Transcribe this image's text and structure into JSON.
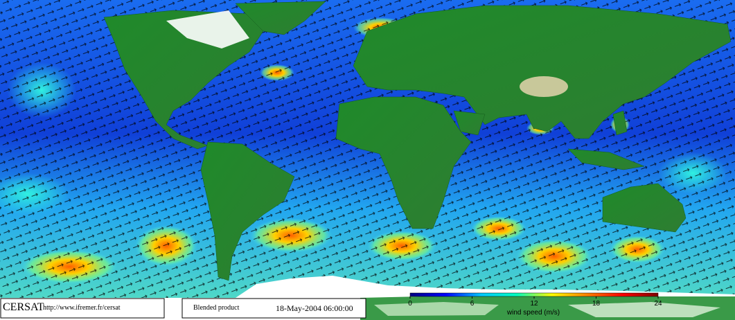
{
  "footer": {
    "logo": "CERSAT",
    "url": "http://www.ifremer.fr/cersat",
    "product": "Blended product",
    "timestamp": "18-May-2004 06:00:00"
  },
  "colorbar": {
    "lim": [
      0,
      24
    ],
    "ticks": [
      0,
      6,
      12,
      18,
      24
    ],
    "label": "wind speed (m/s)",
    "colors": [
      "#000080",
      "#0000ff",
      "#00c8ff",
      "#00ffc0",
      "#ffff00",
      "#ff8000",
      "#ff0000",
      "#800000"
    ]
  }
}
